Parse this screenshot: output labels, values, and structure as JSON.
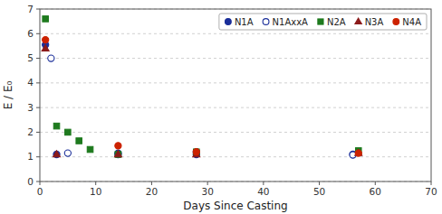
{
  "chart_data": {
    "type": "scatter",
    "x_label": "Days Since Casting",
    "y_label": "E / E₀",
    "xlim": [
      0,
      70
    ],
    "ylim": [
      0,
      7
    ],
    "xticks": [
      0,
      10,
      20,
      30,
      40,
      50,
      60,
      70
    ],
    "yticks": [
      0,
      1,
      2,
      3,
      4,
      5,
      6,
      7
    ],
    "grid": true,
    "legend": "upper right",
    "series": [
      {
        "name": "N1A",
        "color": "#1a2e99",
        "marker": "circle",
        "x": [
          1,
          3,
          14,
          28,
          56
        ],
        "values": [
          5.55,
          1.1,
          1.15,
          1.1,
          1.1
        ]
      },
      {
        "name": "N1AxxA",
        "color": "#1a2e99",
        "marker": "circle-open",
        "x": [
          2,
          5,
          14,
          28,
          56
        ],
        "values": [
          5.0,
          1.15,
          1.1,
          1.2,
          1.08
        ]
      },
      {
        "name": "N2A",
        "color": "#1e7a1e",
        "marker": "square",
        "x": [
          1,
          3,
          5,
          7,
          9,
          14,
          28,
          57
        ],
        "values": [
          6.6,
          2.25,
          2.0,
          1.65,
          1.3,
          1.1,
          1.2,
          1.25
        ]
      },
      {
        "name": "N3A",
        "color": "#8b1a1a",
        "marker": "triangle",
        "x": [
          1,
          3,
          14,
          28,
          57
        ],
        "values": [
          5.4,
          1.1,
          1.1,
          1.1,
          1.15
        ]
      },
      {
        "name": "N4A",
        "color": "#cc2200",
        "marker": "circle",
        "x": [
          1,
          14,
          28,
          57
        ],
        "values": [
          5.75,
          1.45,
          1.2,
          1.15
        ]
      }
    ]
  }
}
